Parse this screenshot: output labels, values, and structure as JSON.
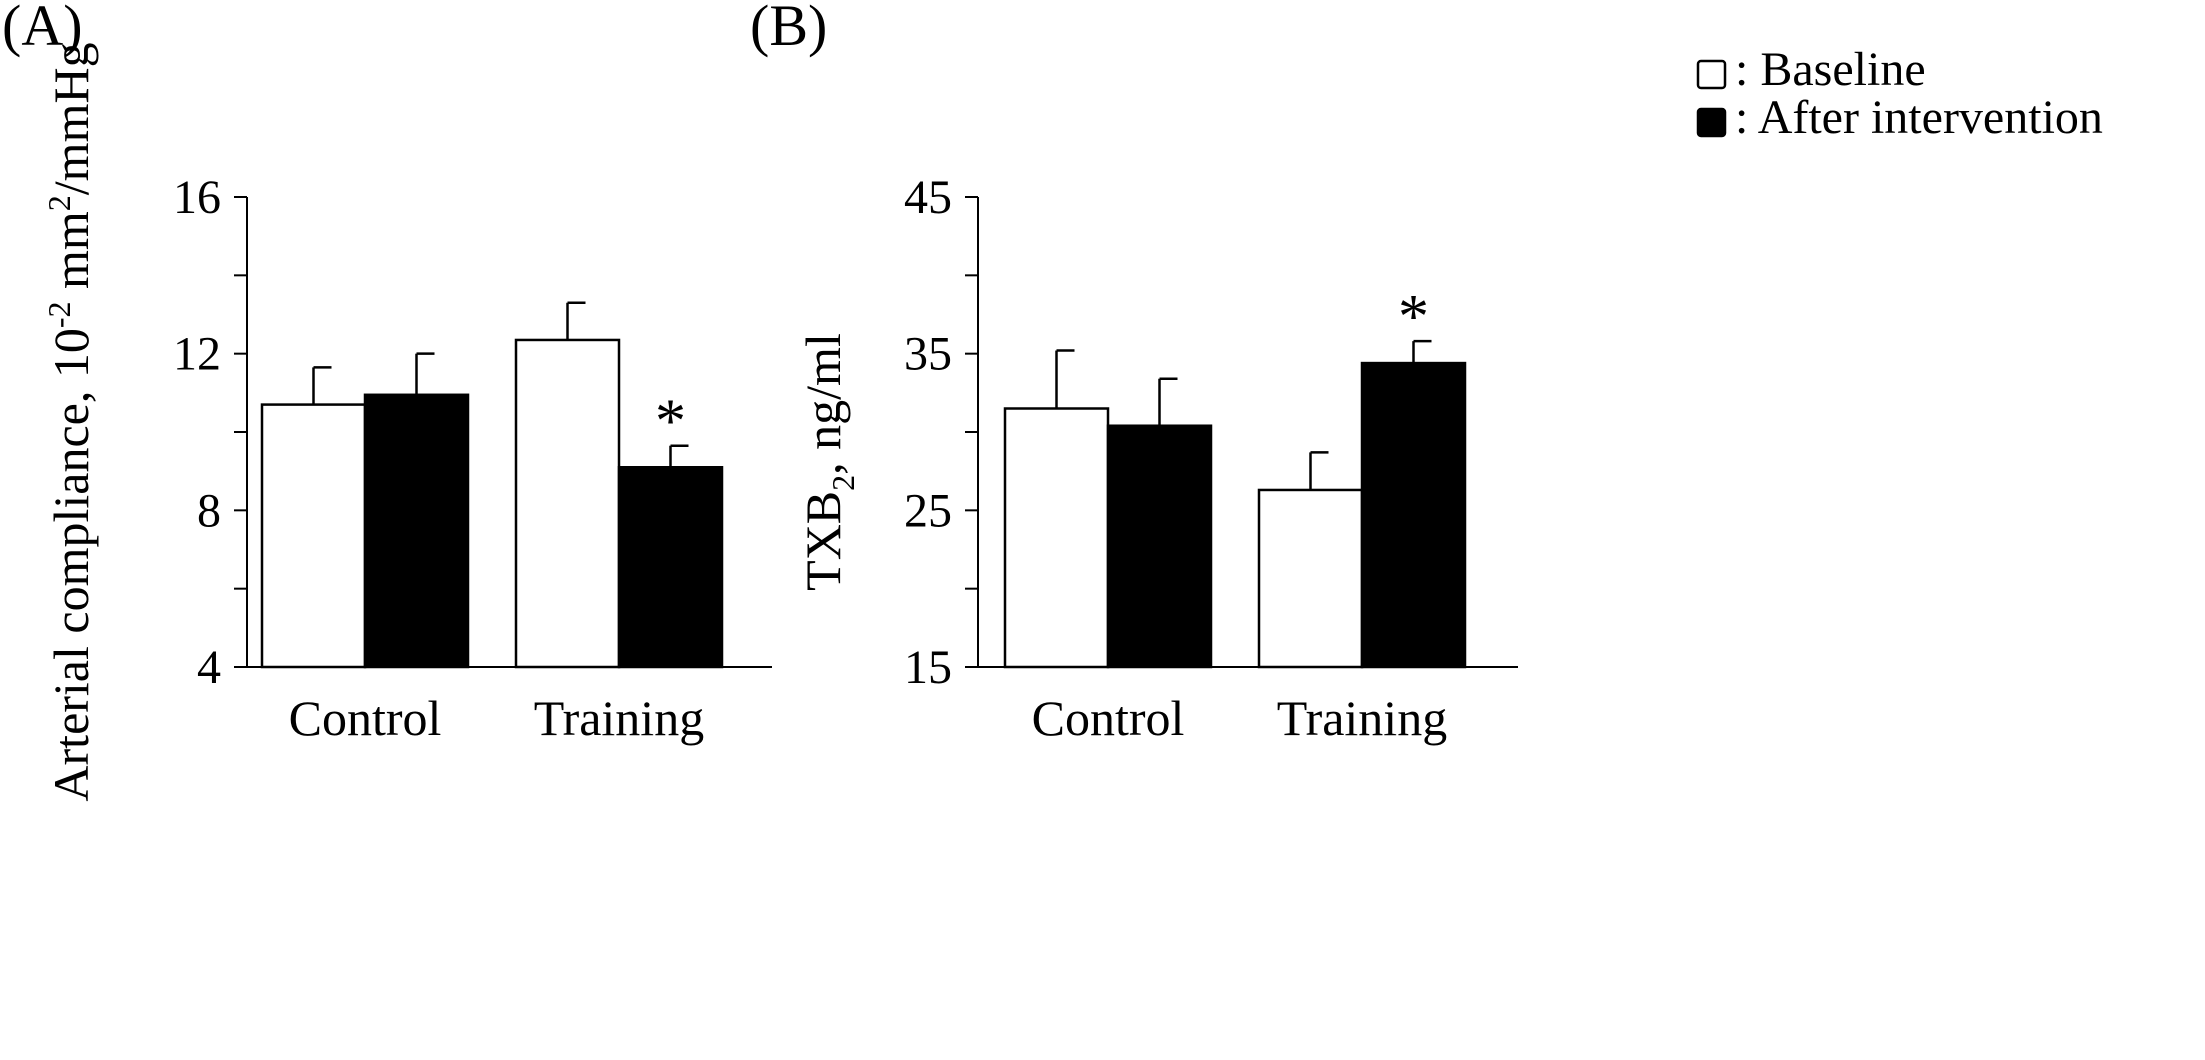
{
  "panels": [
    {
      "label": "(A)",
      "chart_data": {
        "type": "bar",
        "title": "",
        "categories": [
          "Control",
          "Training"
        ],
        "ylabel_parts": [
          "Arterial  compliance, 10",
          "-2",
          " mm",
          "2",
          "/mmHg"
        ],
        "ylim": [
          4,
          16
        ],
        "yticks": [
          4,
          8,
          12,
          16
        ],
        "series": [
          {
            "name": "Baseline",
            "color": "#ffffff",
            "values": [
              10.7,
              12.35
            ],
            "errors": [
              0.95,
              0.95
            ]
          },
          {
            "name": "After intervention",
            "color": "#000000",
            "values": [
              10.95,
              9.1
            ],
            "errors": [
              1.05,
              0.55
            ]
          }
        ],
        "annotations": [
          {
            "category": 1,
            "series": 1,
            "text": "*"
          }
        ]
      }
    },
    {
      "label": "(B)",
      "chart_data": {
        "type": "bar",
        "title": "",
        "categories": [
          "Control",
          "Training"
        ],
        "ylabel_parts": [
          "TXB",
          "2",
          ", ng/ml"
        ],
        "ylim": [
          15,
          45
        ],
        "yticks": [
          15,
          25,
          35,
          45
        ],
        "series": [
          {
            "name": "Baseline",
            "color": "#ffffff",
            "values": [
              31.5,
              26.3
            ],
            "errors": [
              3.7,
              2.4
            ]
          },
          {
            "name": "After intervention",
            "color": "#000000",
            "values": [
              30.4,
              34.4
            ],
            "errors": [
              3.0,
              1.4
            ]
          }
        ],
        "annotations": [
          {
            "category": 1,
            "series": 1,
            "text": "*"
          }
        ]
      }
    }
  ],
  "legend": {
    "placement": "top-right",
    "items": [
      {
        "label": ": Baseline",
        "color": "#ffffff"
      },
      {
        "label": ": After intervention",
        "color": "#000000"
      }
    ]
  }
}
